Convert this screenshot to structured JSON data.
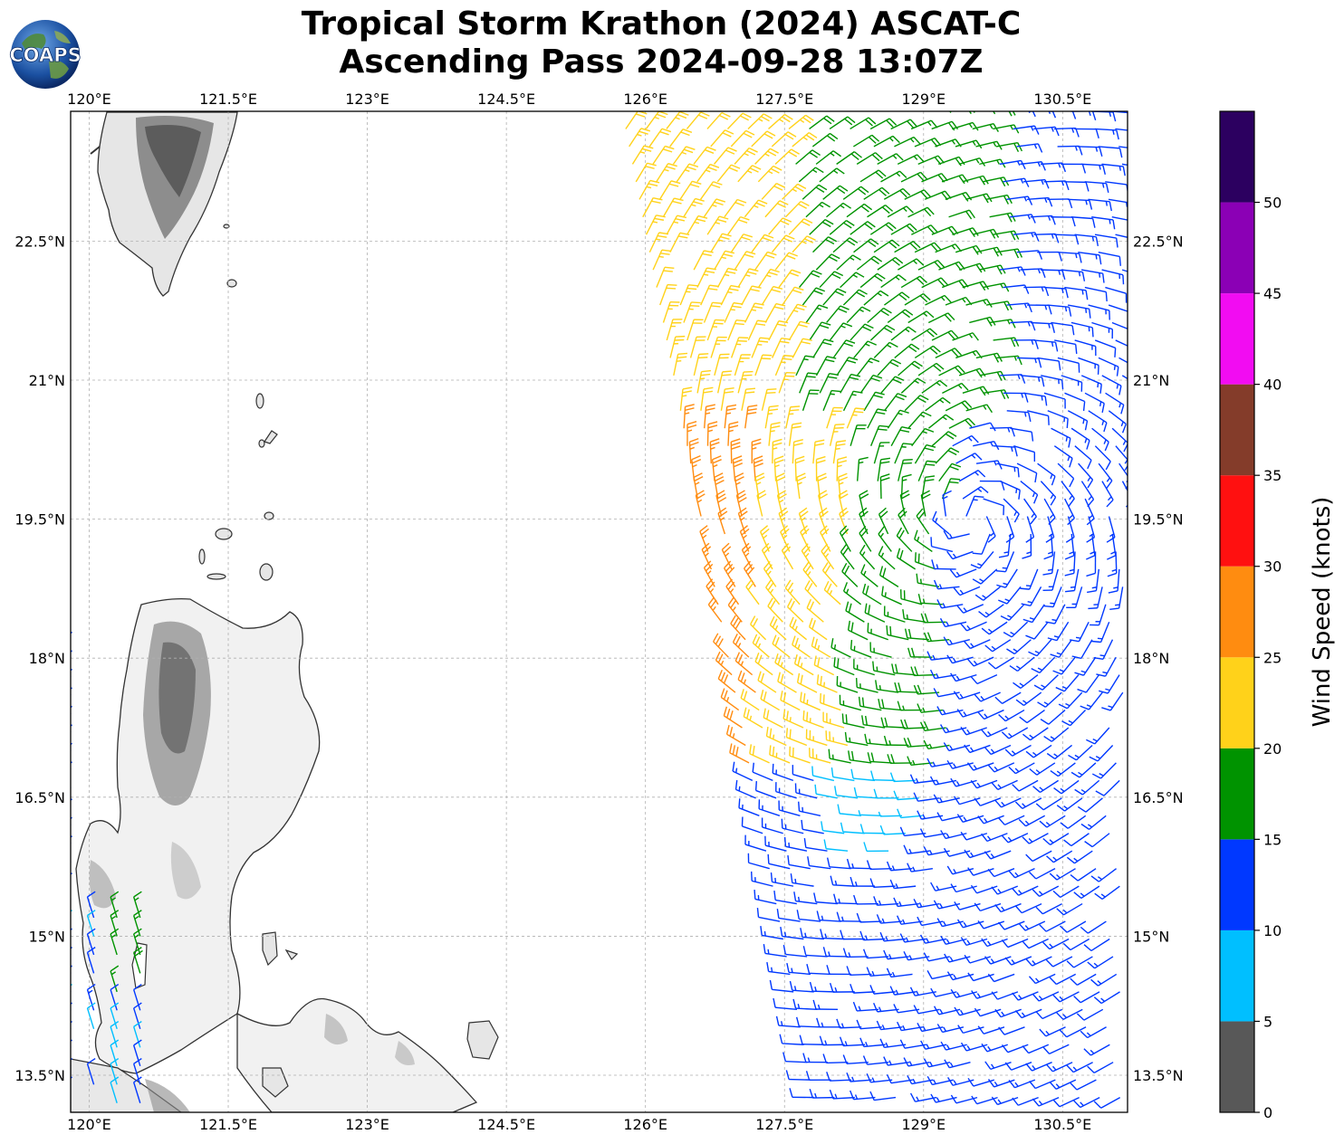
{
  "title": {
    "line1": "Tropical Storm Krathon (2024) ASCAT-C",
    "line2": "Ascending Pass 2024-09-28 13:07Z"
  },
  "logo": {
    "text": "COAPS",
    "icon": "globe-logo-icon"
  },
  "map": {
    "lon_range": [
      119.8,
      131.2
    ],
    "lat_range": [
      13.1,
      23.9
    ],
    "x_ticks": [
      "120°E",
      "121.5°E",
      "123°E",
      "124.5°E",
      "126°E",
      "127.5°E",
      "129°E",
      "130.5°E"
    ],
    "x_tick_values": [
      120,
      121.5,
      123,
      124.5,
      126,
      127.5,
      129,
      130.5
    ],
    "y_ticks": [
      "22.5°N",
      "21°N",
      "19.5°N",
      "18°N",
      "16.5°N",
      "15°N",
      "13.5°N"
    ],
    "y_tick_values": [
      22.5,
      21,
      19.5,
      18,
      16.5,
      15,
      13.5
    ],
    "grid": true,
    "land_shading": "grayscale terrain (Taiwan, Luzon)",
    "observation": "ASCAT-C scatterometer wind barbs, swath from ~125.8°E to 131.2°E",
    "storm_center": [
      129.5,
      19.5
    ]
  },
  "colorbar": {
    "label": "Wind Speed (knots)",
    "ticks": [
      "0",
      "5",
      "10",
      "15",
      "20",
      "25",
      "30",
      "35",
      "40",
      "45",
      "50"
    ],
    "bins": [
      {
        "min": 0,
        "max": 5,
        "color": "#585858"
      },
      {
        "min": 5,
        "max": 10,
        "color": "#00bfff"
      },
      {
        "min": 10,
        "max": 15,
        "color": "#0038ff"
      },
      {
        "min": 15,
        "max": 20,
        "color": "#009300"
      },
      {
        "min": 20,
        "max": 25,
        "color": "#ffd21a"
      },
      {
        "min": 25,
        "max": 30,
        "color": "#ff8c10"
      },
      {
        "min": 30,
        "max": 35,
        "color": "#ff1010"
      },
      {
        "min": 35,
        "max": 40,
        "color": "#843c2a"
      },
      {
        "min": 40,
        "max": 45,
        "color": "#f20cf2"
      },
      {
        "min": 45,
        "max": 50,
        "color": "#8b00b5"
      },
      {
        "min": 50,
        "max": 55,
        "color": "#2c0060"
      }
    ]
  }
}
